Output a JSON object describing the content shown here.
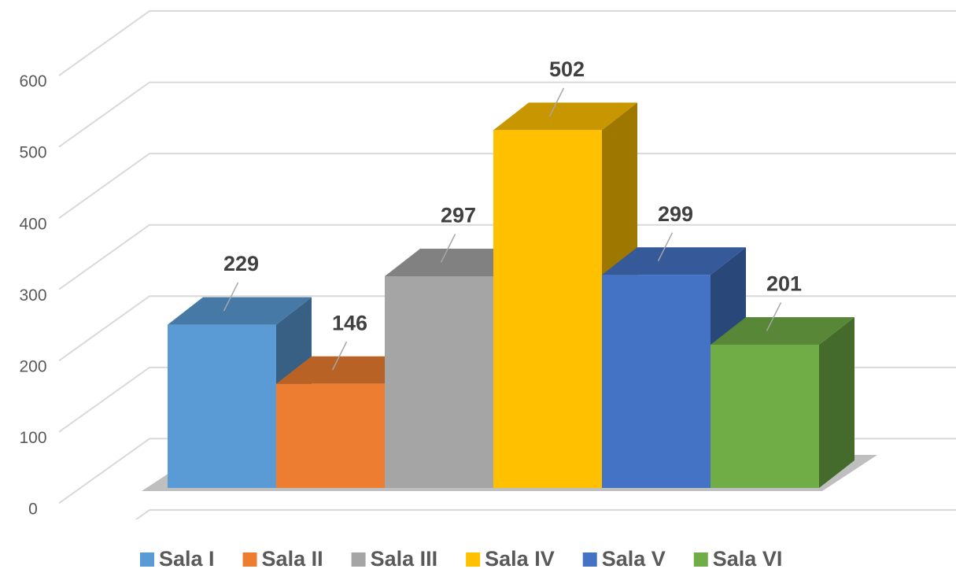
{
  "chart_data": {
    "type": "bar3d",
    "categories": [
      "Sala I",
      "Sala II",
      "Sala III",
      "Sala IV",
      "Sala V",
      "Sala VI"
    ],
    "values": [
      229,
      146,
      297,
      502,
      299,
      201
    ],
    "colors": [
      "#5b9bd5",
      "#ed7d31",
      "#a5a5a5",
      "#ffc000",
      "#4472c4",
      "#70ad47"
    ],
    "ylim": [
      0,
      700
    ],
    "yticks": [
      0,
      100,
      200,
      300,
      400,
      500,
      600
    ],
    "grid": true,
    "legend": "bottom"
  }
}
